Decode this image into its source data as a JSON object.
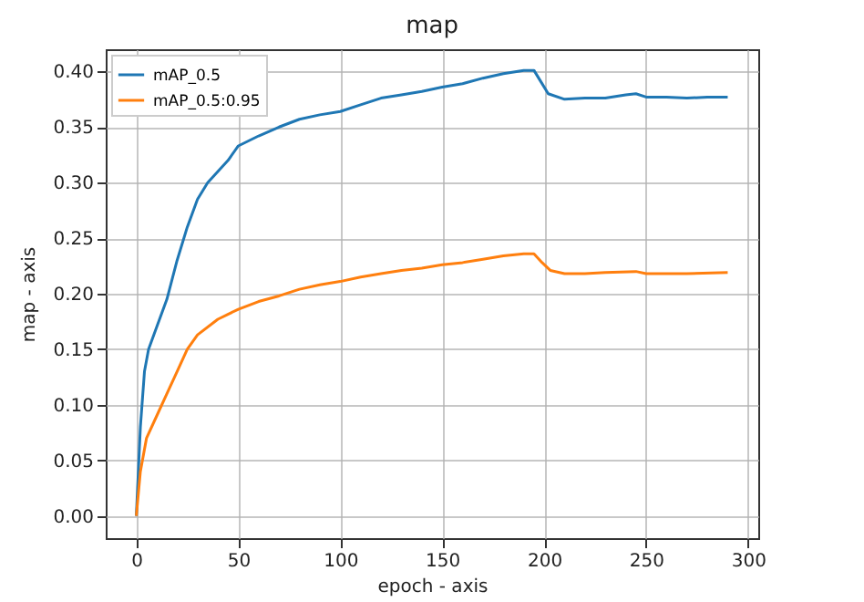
{
  "chart_data": {
    "type": "line",
    "title": "map",
    "xlabel": "epoch - axis",
    "ylabel": "map - axis",
    "xlim": [
      -15,
      305
    ],
    "ylim": [
      -0.02,
      0.42
    ],
    "xticks": [
      0,
      50,
      100,
      150,
      200,
      250,
      300
    ],
    "yticks": [
      {
        "value": 0,
        "label": "0.00"
      },
      {
        "value": 0.05,
        "label": "0.05"
      },
      {
        "value": 0.1,
        "label": "0.10"
      },
      {
        "value": 0.15,
        "label": "0.15"
      },
      {
        "value": 0.2,
        "label": "0.20"
      },
      {
        "value": 0.25,
        "label": "0.25"
      },
      {
        "value": 0.3,
        "label": "0.30"
      },
      {
        "value": 0.35,
        "label": "0.35"
      },
      {
        "value": 0.4,
        "label": "0.40"
      }
    ],
    "grid": true,
    "legend": "top left",
    "series": [
      {
        "name": "mAP_0.5",
        "color": "#1f77b4",
        "x": [
          0,
          2,
          4,
          6,
          10,
          15,
          20,
          25,
          30,
          35,
          40,
          45,
          50,
          60,
          70,
          80,
          90,
          100,
          110,
          120,
          130,
          140,
          150,
          160,
          170,
          180,
          190,
          195,
          198,
          202,
          210,
          220,
          230,
          240,
          245,
          250,
          260,
          270,
          280,
          290
        ],
        "values": [
          0,
          0.08,
          0.13,
          0.15,
          0.17,
          0.195,
          0.23,
          0.26,
          0.285,
          0.3,
          0.31,
          0.32,
          0.333,
          0.342,
          0.35,
          0.357,
          0.361,
          0.364,
          0.37,
          0.376,
          0.379,
          0.382,
          0.386,
          0.389,
          0.394,
          0.398,
          0.401,
          0.401,
          0.392,
          0.38,
          0.375,
          0.376,
          0.376,
          0.379,
          0.38,
          0.377,
          0.377,
          0.376,
          0.377,
          0.377
        ]
      },
      {
        "name": "mAP_0.5:0.95",
        "color": "#ff7f0e",
        "x": [
          0,
          2,
          5,
          10,
          15,
          20,
          25,
          30,
          40,
          50,
          60,
          70,
          80,
          90,
          100,
          110,
          120,
          130,
          140,
          150,
          160,
          170,
          180,
          190,
          195,
          199,
          203,
          210,
          220,
          230,
          245,
          250,
          260,
          270,
          290
        ],
        "values": [
          0,
          0.04,
          0.07,
          0.09,
          0.11,
          0.13,
          0.15,
          0.163,
          0.177,
          0.186,
          0.193,
          0.198,
          0.204,
          0.208,
          0.211,
          0.215,
          0.218,
          0.221,
          0.223,
          0.226,
          0.228,
          0.231,
          0.234,
          0.236,
          0.236,
          0.228,
          0.221,
          0.218,
          0.218,
          0.219,
          0.22,
          0.218,
          0.218,
          0.218,
          0.219
        ]
      }
    ]
  }
}
